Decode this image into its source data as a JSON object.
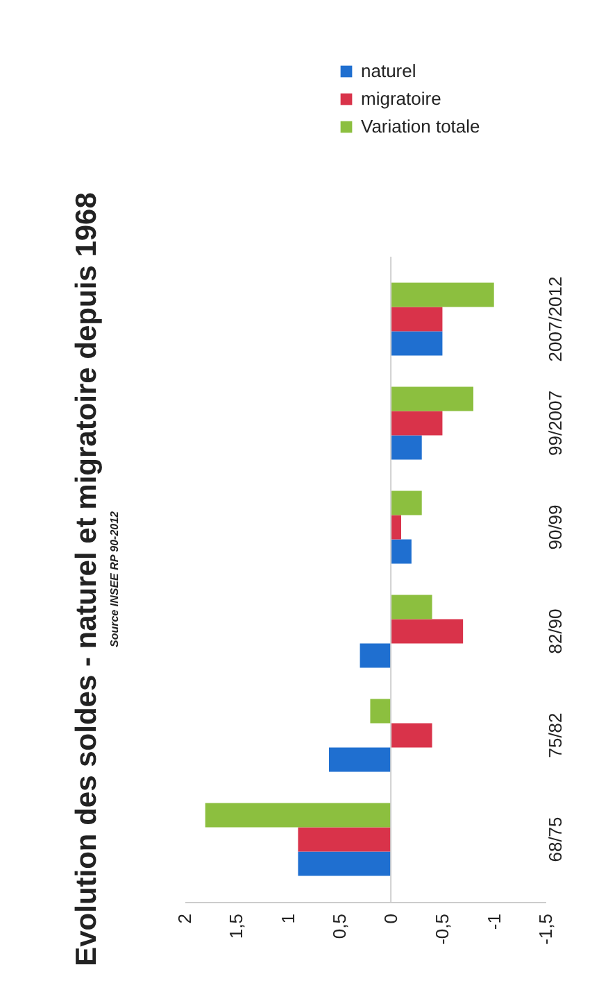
{
  "chart_data": {
    "type": "bar",
    "orientation": "horizontal",
    "title": "Evolution des soldes - naturel et migratoire depuis 1968",
    "subtitle": "Source INSEE RP 90-2012",
    "categories": [
      "2007/2012",
      "99/2007",
      "90/99",
      "82/90",
      "75/82",
      "68/75"
    ],
    "series": [
      {
        "name": "naturel",
        "color": "#1f6fd0",
        "values": [
          -0.5,
          -0.3,
          -0.2,
          0.3,
          0.6,
          0.9
        ]
      },
      {
        "name": "migratoire",
        "color": "#d9334a",
        "values": [
          -0.5,
          -0.5,
          -0.1,
          -0.7,
          -0.4,
          0.9
        ]
      },
      {
        "name": "Variation totale",
        "color": "#8cbf3f",
        "values": [
          -1.0,
          -0.8,
          -0.3,
          -0.4,
          0.2,
          1.8
        ]
      }
    ],
    "xlim": [
      2,
      -1.5
    ],
    "xticks": [
      2,
      {
        "value": 1.5,
        "label": "1,5"
      },
      1,
      {
        "value": 0.5,
        "label": "0,5"
      },
      0,
      {
        "value": -0.5,
        "label": "-0,5"
      },
      {
        "value": -1,
        "label": "-1"
      },
      {
        "value": -1.5,
        "label": "-1,5"
      }
    ],
    "legend": "top"
  }
}
